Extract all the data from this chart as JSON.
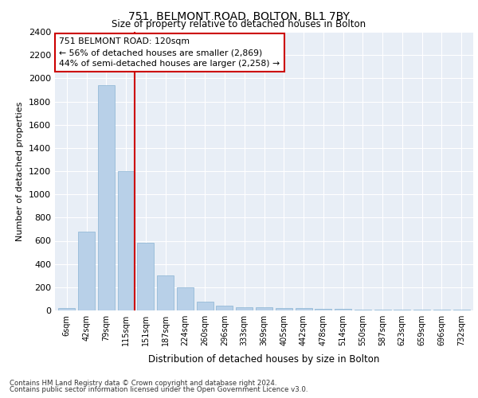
{
  "title1": "751, BELMONT ROAD, BOLTON, BL1 7BY",
  "title2": "Size of property relative to detached houses in Bolton",
  "xlabel": "Distribution of detached houses by size in Bolton",
  "ylabel": "Number of detached properties",
  "categories": [
    "6sqm",
    "42sqm",
    "79sqm",
    "115sqm",
    "151sqm",
    "187sqm",
    "224sqm",
    "260sqm",
    "296sqm",
    "333sqm",
    "369sqm",
    "405sqm",
    "442sqm",
    "478sqm",
    "514sqm",
    "550sqm",
    "587sqm",
    "623sqm",
    "659sqm",
    "696sqm",
    "732sqm"
  ],
  "values": [
    20,
    680,
    1940,
    1200,
    580,
    305,
    200,
    75,
    40,
    28,
    28,
    18,
    18,
    14,
    14,
    10,
    8,
    6,
    5,
    5,
    5
  ],
  "bar_color": "#b8d0e8",
  "bar_edge_color": "#8ab4d4",
  "marker_label": "751 BELMONT ROAD: 120sqm",
  "annotation_line1": "← 56% of detached houses are smaller (2,869)",
  "annotation_line2": "44% of semi-detached houses are larger (2,258) →",
  "ylim": [
    0,
    2400
  ],
  "yticks": [
    0,
    200,
    400,
    600,
    800,
    1000,
    1200,
    1400,
    1600,
    1800,
    2000,
    2200,
    2400
  ],
  "footer1": "Contains HM Land Registry data © Crown copyright and database right 2024.",
  "footer2": "Contains public sector information licensed under the Open Government Licence v3.0.",
  "red_line_color": "#cc0000",
  "box_color": "#cc0000",
  "bg_color": "#e8eef6"
}
